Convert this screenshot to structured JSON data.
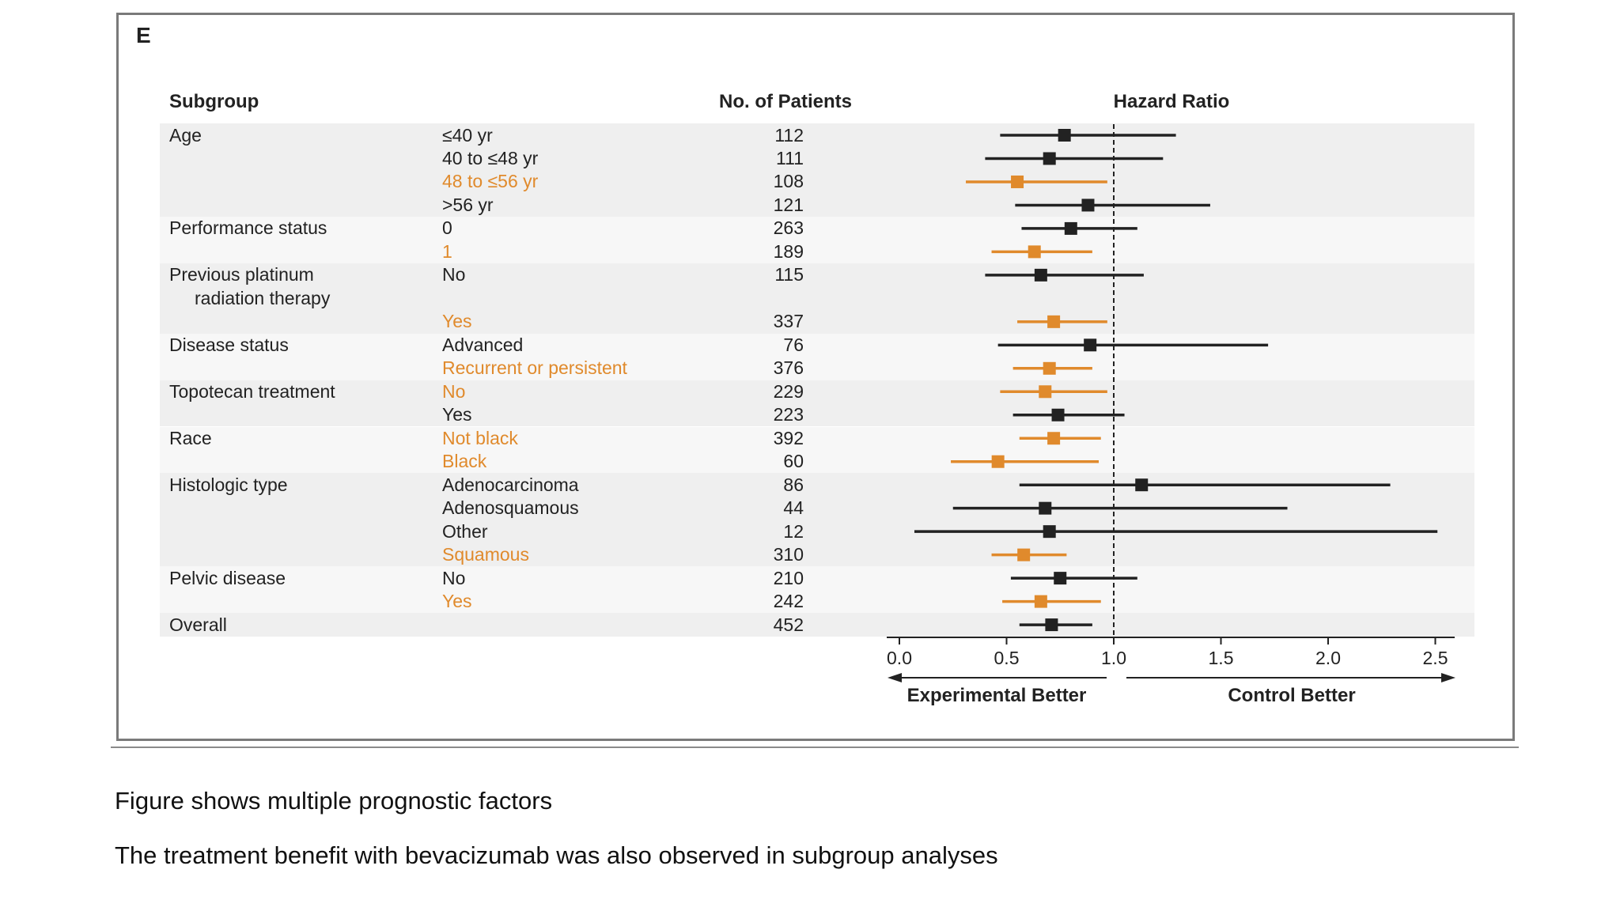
{
  "panel_label": "E",
  "caption": [
    "Figure shows multiple prognostic factors",
    "The treatment benefit with bevacizumab was also observed in subgroup analyses"
  ],
  "chart_data": {
    "type": "forest",
    "headers": {
      "subgroup": "Subgroup",
      "patients": "No. of Patients",
      "hr": "Hazard Ratio"
    },
    "xlim": [
      0.0,
      2.6
    ],
    "ticks": [
      "0.0",
      "0.5",
      "1.0",
      "1.5",
      "2.0",
      "2.5"
    ],
    "reference_line": 1.0,
    "arrow_labels": {
      "left": "Experimental Better",
      "right": "Control Better"
    },
    "colors": {
      "default": "#222222",
      "highlight": "#e08a2c",
      "band_a": "#efefef",
      "band_b": "#f7f7f7"
    },
    "groups": [
      {
        "label": "Age",
        "rows": [
          {
            "level": "≤40 yr",
            "n": "112",
            "hr": 0.77,
            "lo": 0.47,
            "hi": 1.29,
            "highlight": false
          },
          {
            "level": "40 to ≤48 yr",
            "n": "111",
            "hr": 0.7,
            "lo": 0.4,
            "hi": 1.23,
            "highlight": false
          },
          {
            "level": "48 to ≤56 yr",
            "n": "108",
            "hr": 0.55,
            "lo": 0.31,
            "hi": 0.97,
            "highlight": true
          },
          {
            "level": ">56 yr",
            "n": "121",
            "hr": 0.88,
            "lo": 0.54,
            "hi": 1.45,
            "highlight": false
          }
        ]
      },
      {
        "label": "Performance status",
        "rows": [
          {
            "level": "0",
            "n": "263",
            "hr": 0.8,
            "lo": 0.57,
            "hi": 1.11,
            "highlight": false
          },
          {
            "level": "1",
            "n": "189",
            "hr": 0.63,
            "lo": 0.43,
            "hi": 0.9,
            "highlight": true
          }
        ]
      },
      {
        "label": "Previous platinum",
        "label2": "radiation therapy",
        "rows": [
          {
            "level": "No",
            "n": "115",
            "hr": 0.66,
            "lo": 0.4,
            "hi": 1.14,
            "highlight": false
          },
          {
            "level": "Yes",
            "n": "337",
            "hr": 0.72,
            "lo": 0.55,
            "hi": 0.97,
            "highlight": true
          }
        ]
      },
      {
        "label": "Disease status",
        "rows": [
          {
            "level": "Advanced",
            "n": "76",
            "hr": 0.89,
            "lo": 0.46,
            "hi": 1.72,
            "highlight": false
          },
          {
            "level": "Recurrent or persistent",
            "n": "376",
            "hr": 0.7,
            "lo": 0.53,
            "hi": 0.9,
            "highlight": true
          }
        ]
      },
      {
        "label": "Topotecan treatment",
        "rows": [
          {
            "level": "No",
            "n": "229",
            "hr": 0.68,
            "lo": 0.47,
            "hi": 0.97,
            "highlight": true
          },
          {
            "level": "Yes",
            "n": "223",
            "hr": 0.74,
            "lo": 0.53,
            "hi": 1.05,
            "highlight": false
          }
        ]
      },
      {
        "label": "Race",
        "rows": [
          {
            "level": "Not black",
            "n": "392",
            "hr": 0.72,
            "lo": 0.56,
            "hi": 0.94,
            "highlight": true
          },
          {
            "level": "Black",
            "n": "60",
            "hr": 0.46,
            "lo": 0.24,
            "hi": 0.93,
            "highlight": true
          }
        ]
      },
      {
        "label": "Histologic type",
        "rows": [
          {
            "level": "Adenocarcinoma",
            "n": "86",
            "hr": 1.13,
            "lo": 0.56,
            "hi": 2.29,
            "highlight": false
          },
          {
            "level": "Adenosquamous",
            "n": "44",
            "hr": 0.68,
            "lo": 0.25,
            "hi": 1.81,
            "highlight": false
          },
          {
            "level": "Other",
            "n": "12",
            "hr": 0.7,
            "lo": 0.07,
            "hi": 2.51,
            "highlight": false
          },
          {
            "level": "Squamous",
            "n": "310",
            "hr": 0.58,
            "lo": 0.43,
            "hi": 0.78,
            "highlight": true
          }
        ]
      },
      {
        "label": "Pelvic disease",
        "rows": [
          {
            "level": "No",
            "n": "210",
            "hr": 0.75,
            "lo": 0.52,
            "hi": 1.11,
            "highlight": false
          },
          {
            "level": "Yes",
            "n": "242",
            "hr": 0.66,
            "lo": 0.48,
            "hi": 0.94,
            "highlight": true
          }
        ]
      },
      {
        "label": "Overall",
        "rows": [
          {
            "level": "",
            "n": "452",
            "hr": 0.71,
            "lo": 0.56,
            "hi": 0.9,
            "highlight": false
          }
        ]
      }
    ]
  }
}
